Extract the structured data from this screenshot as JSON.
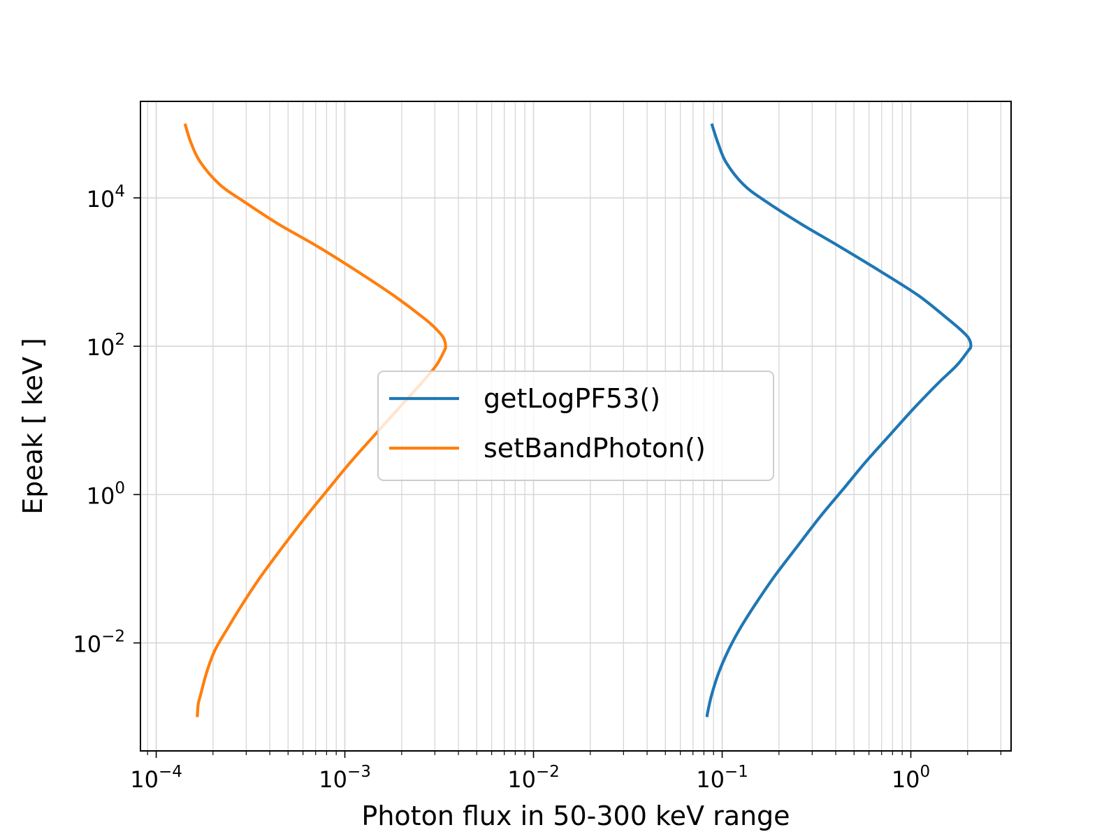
{
  "chart_data": {
    "type": "line",
    "title": "",
    "xlabel": "Photon flux in 50-300 keV range",
    "ylabel": "Epeak [ keV ]",
    "xscale": "log",
    "yscale": "log",
    "xlim": [
      8.25e-05,
      3.4
    ],
    "ylim": [
      0.00035,
      200000
    ],
    "grid": true,
    "legend_position": "center",
    "x_ticks": [
      {
        "base": "10",
        "exp": "−4"
      },
      {
        "base": "10",
        "exp": "−3"
      },
      {
        "base": "10",
        "exp": "−2"
      },
      {
        "base": "10",
        "exp": "−1"
      },
      {
        "base": "10",
        "exp": "0"
      }
    ],
    "y_ticks": [
      {
        "base": "10",
        "exp": "−2"
      },
      {
        "base": "10",
        "exp": "0"
      },
      {
        "base": "10",
        "exp": "2"
      },
      {
        "base": "10",
        "exp": "4"
      }
    ],
    "series": [
      {
        "name": "getLogPF53()",
        "color": "#1f77b4",
        "points": [
          [
            0.083,
            0.001
          ],
          [
            0.084,
            0.0012
          ],
          [
            0.088,
            0.002
          ],
          [
            0.096,
            0.004
          ],
          [
            0.108,
            0.008
          ],
          [
            0.125,
            0.016
          ],
          [
            0.152,
            0.035
          ],
          [
            0.19,
            0.08
          ],
          [
            0.25,
            0.2
          ],
          [
            0.33,
            0.5
          ],
          [
            0.44,
            1.2
          ],
          [
            0.58,
            2.8
          ],
          [
            0.78,
            6.5
          ],
          [
            1.05,
            15
          ],
          [
            1.4,
            32
          ],
          [
            1.75,
            55
          ],
          [
            2.0,
            85
          ],
          [
            2.08,
            100
          ],
          [
            2.02,
            130
          ],
          [
            1.82,
            170
          ],
          [
            1.55,
            240
          ],
          [
            1.1,
            480
          ],
          [
            0.7,
            1000
          ],
          [
            0.42,
            2200
          ],
          [
            0.26,
            4500
          ],
          [
            0.17,
            9000
          ],
          [
            0.13,
            15000
          ],
          [
            0.105,
            30000
          ],
          [
            0.095,
            55000
          ],
          [
            0.088,
            100000
          ]
        ]
      },
      {
        "name": "setBandPhoton()",
        "color": "#ff7f0e",
        "points": [
          [
            0.000165,
            0.001
          ],
          [
            0.000167,
            0.0015
          ],
          [
            0.000172,
            0.002
          ],
          [
            0.000185,
            0.004
          ],
          [
            0.000205,
            0.008
          ],
          [
            0.00024,
            0.016
          ],
          [
            0.00029,
            0.035
          ],
          [
            0.00036,
            0.08
          ],
          [
            0.00047,
            0.2
          ],
          [
            0.00062,
            0.5
          ],
          [
            0.00082,
            1.2
          ],
          [
            0.00108,
            2.8
          ],
          [
            0.00145,
            6.5
          ],
          [
            0.00195,
            15
          ],
          [
            0.00255,
            32
          ],
          [
            0.00305,
            55
          ],
          [
            0.00335,
            85
          ],
          [
            0.00342,
            100
          ],
          [
            0.00333,
            130
          ],
          [
            0.00305,
            170
          ],
          [
            0.00262,
            240
          ],
          [
            0.00182,
            480
          ],
          [
            0.00118,
            1000
          ],
          [
            0.00072,
            2200
          ],
          [
            0.00044,
            4500
          ],
          [
            0.00029,
            9000
          ],
          [
            0.000218,
            15000
          ],
          [
            0.000172,
            30000
          ],
          [
            0.000153,
            55000
          ],
          [
            0.000142,
            100000
          ]
        ]
      }
    ]
  }
}
